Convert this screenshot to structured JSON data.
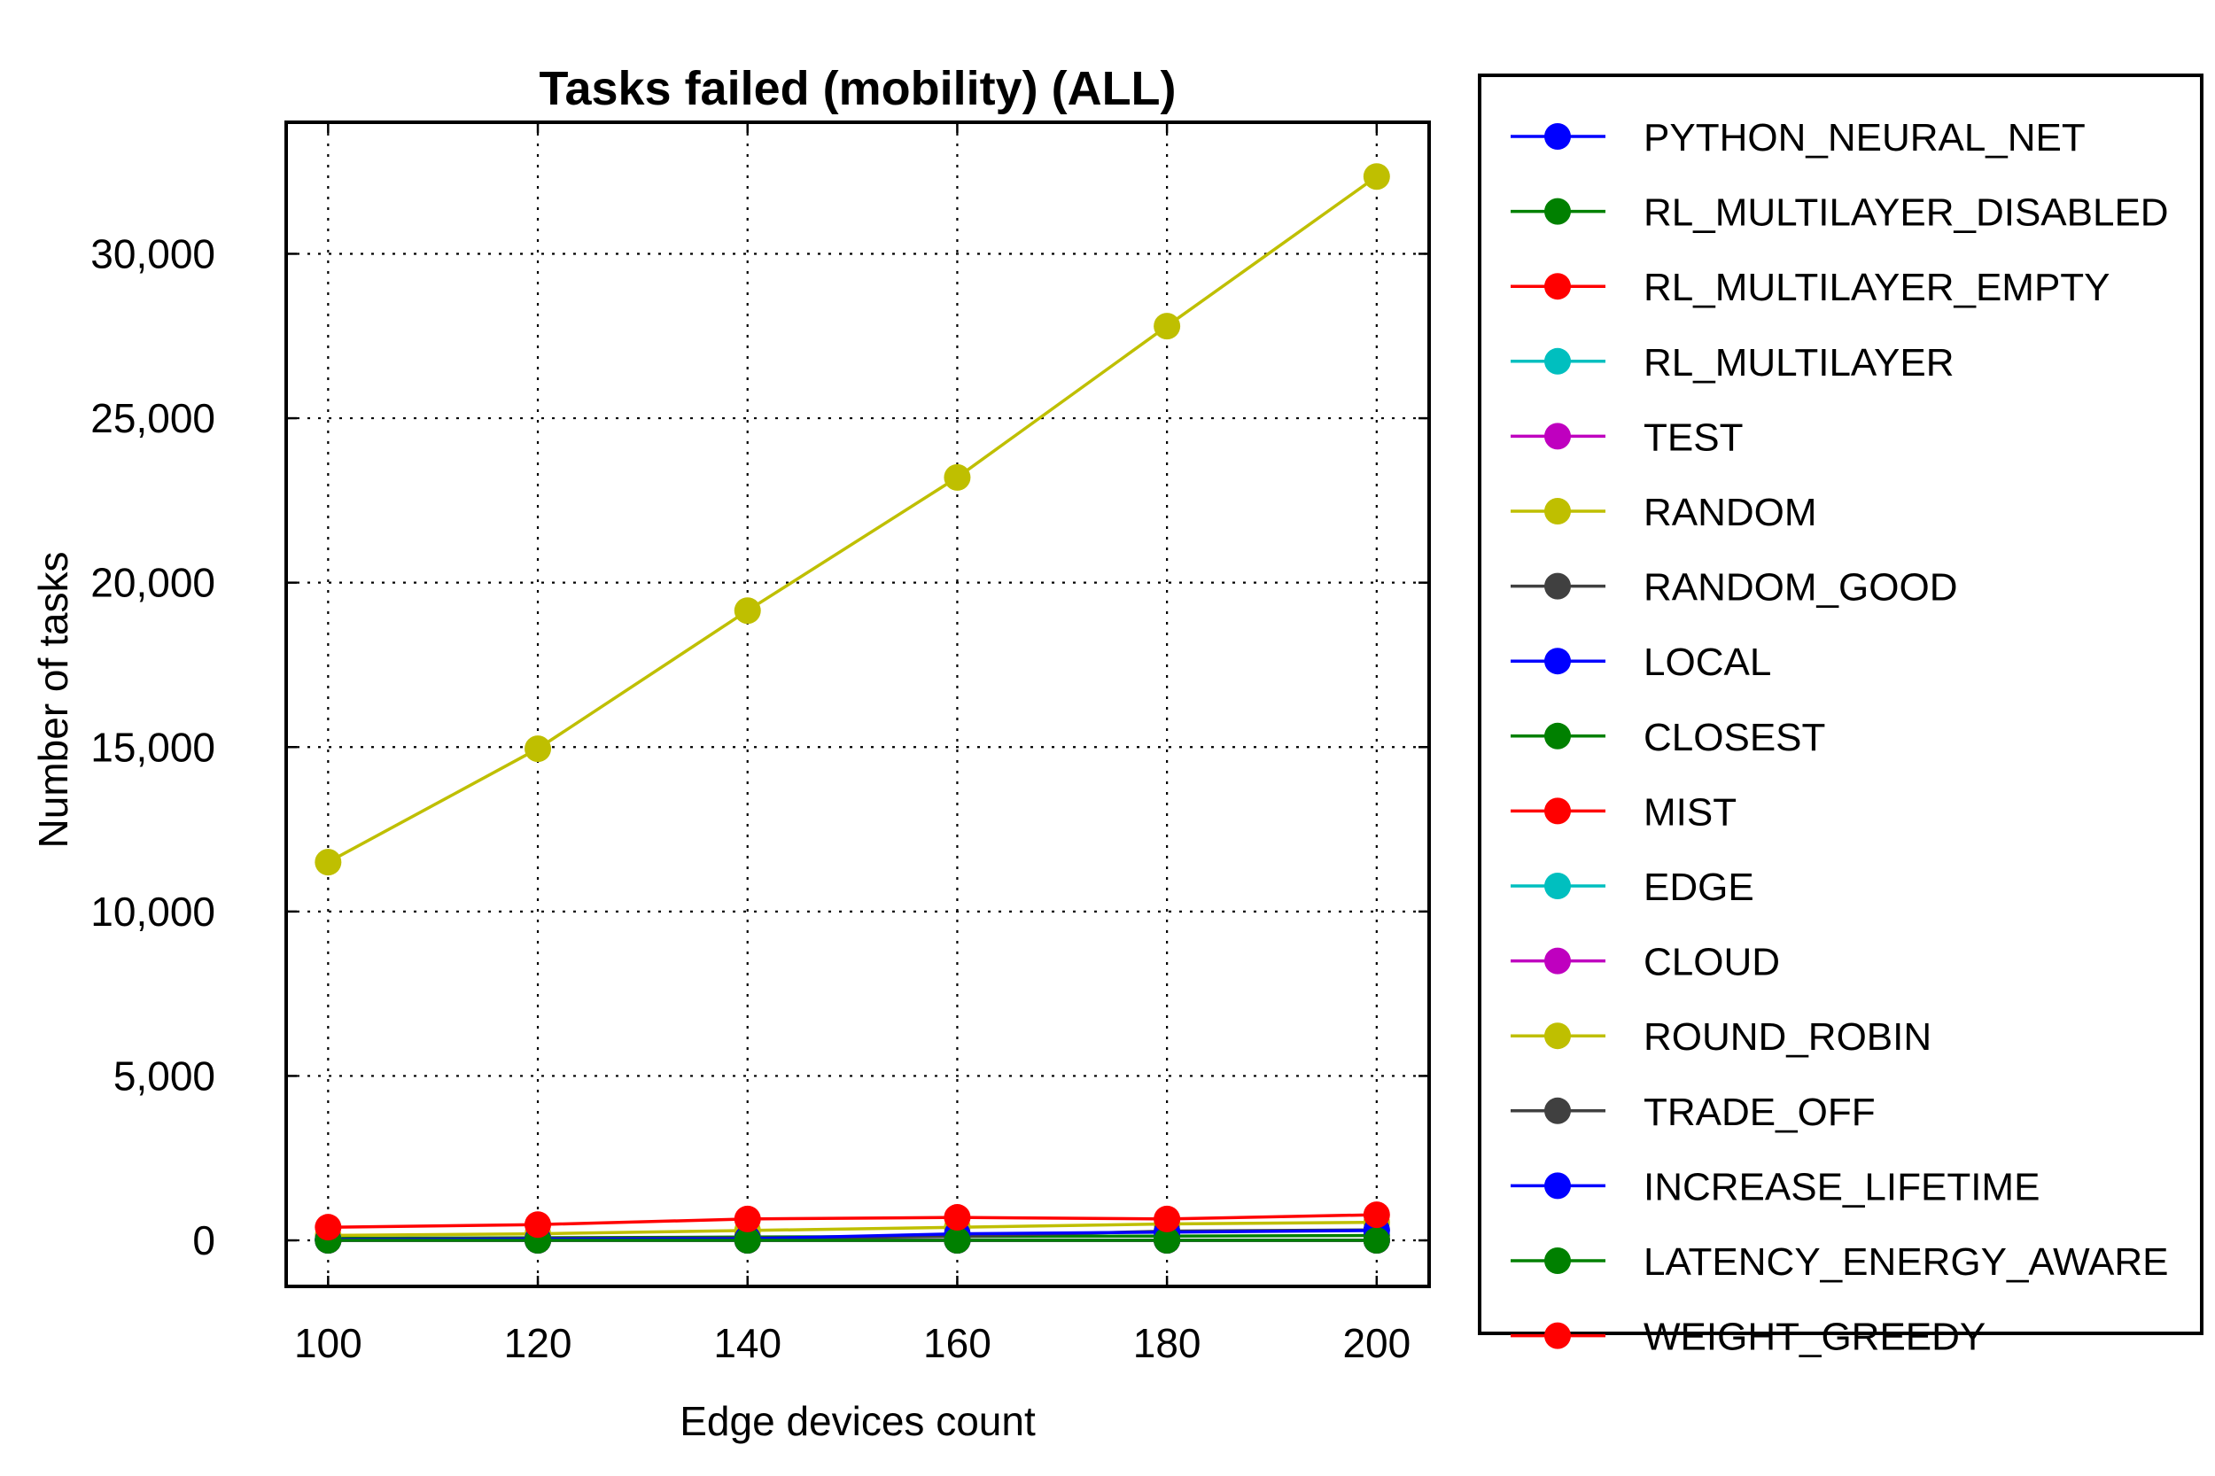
{
  "chart_data": {
    "type": "line",
    "title": "Tasks failed (mobility) (ALL)",
    "xlabel": "Edge devices count",
    "ylabel": "Number of tasks",
    "x": [
      100,
      120,
      140,
      160,
      180,
      200
    ],
    "xlim": [
      96,
      205
    ],
    "ylim": [
      -1400,
      34000
    ],
    "yticks": [
      0,
      5000,
      10000,
      15000,
      20000,
      25000,
      30000
    ],
    "ytick_labels": [
      "0",
      "5,000",
      "10,000",
      "15,000",
      "20,000",
      "25,000",
      "30,000"
    ],
    "xtick_labels": [
      "100",
      "120",
      "140",
      "160",
      "180",
      "200"
    ],
    "grid": true,
    "legend_position": "outside-right",
    "series": [
      {
        "name": "PYTHON_NEURAL_NET",
        "color": "#0000ff",
        "values": [
          0,
          0,
          0,
          0,
          0,
          0
        ]
      },
      {
        "name": "RL_MULTILAYER_DISABLED",
        "color": "#008000",
        "values": [
          0,
          0,
          0,
          0,
          0,
          0
        ]
      },
      {
        "name": "RL_MULTILAYER_EMPTY",
        "color": "#ff0000",
        "values": [
          0,
          0,
          0,
          0,
          0,
          0
        ]
      },
      {
        "name": "RL_MULTILAYER",
        "color": "#00bfbf",
        "values": [
          0,
          0,
          0,
          0,
          0,
          0
        ]
      },
      {
        "name": "TEST",
        "color": "#bf00bf",
        "values": [
          0,
          0,
          0,
          0,
          0,
          0
        ]
      },
      {
        "name": "RANDOM",
        "color": "#bfbf00",
        "values": [
          11500,
          14950,
          19150,
          23200,
          27800,
          32350
        ]
      },
      {
        "name": "RANDOM_GOOD",
        "color": "#404040",
        "values": [
          0,
          0,
          0,
          0,
          0,
          0
        ]
      },
      {
        "name": "LOCAL",
        "color": "#0000ff",
        "values": [
          0,
          0,
          0,
          0,
          0,
          0
        ]
      },
      {
        "name": "CLOSEST",
        "color": "#008000",
        "values": [
          60,
          80,
          100,
          120,
          130,
          150
        ]
      },
      {
        "name": "MIST",
        "color": "#ff0000",
        "values": [
          0,
          0,
          0,
          0,
          0,
          0
        ]
      },
      {
        "name": "EDGE",
        "color": "#00bfbf",
        "values": [
          0,
          0,
          0,
          0,
          0,
          0
        ]
      },
      {
        "name": "CLOUD",
        "color": "#bf00bf",
        "values": [
          0,
          0,
          0,
          0,
          0,
          0
        ]
      },
      {
        "name": "ROUND_ROBIN",
        "color": "#bfbf00",
        "values": [
          150,
          200,
          300,
          400,
          500,
          550
        ]
      },
      {
        "name": "TRADE_OFF",
        "color": "#404040",
        "values": [
          30,
          60,
          70,
          120,
          280,
          320
        ]
      },
      {
        "name": "INCREASE_LIFETIME",
        "color": "#0000ff",
        "values": [
          20,
          40,
          50,
          200,
          250,
          300
        ]
      },
      {
        "name": "LATENCY_ENERGY_AWARE",
        "color": "#008000",
        "values": [
          0,
          0,
          0,
          0,
          0,
          0
        ]
      },
      {
        "name": "WEIGHT_GREEDY",
        "color": "#ff0000",
        "values": [
          400,
          480,
          650,
          700,
          650,
          780
        ]
      }
    ]
  }
}
